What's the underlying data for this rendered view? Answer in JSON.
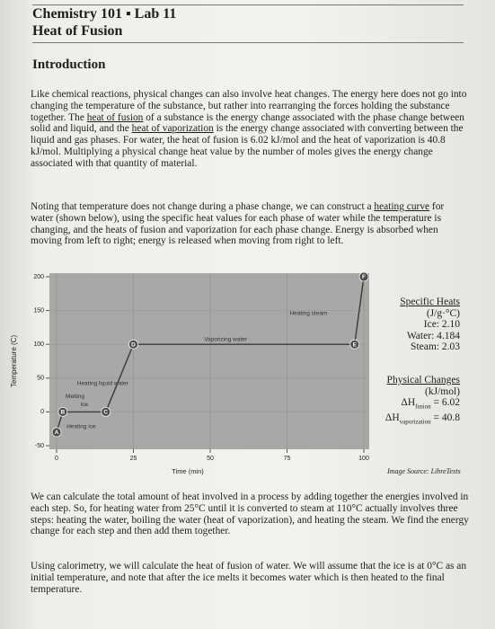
{
  "header": {
    "title": "Chemistry 101 ▪ Lab 11",
    "subtitle": "Heat of Fusion"
  },
  "section": {
    "heading": "Introduction"
  },
  "paragraphs": [
    {
      "runs": [
        {
          "text": "Like chemical reactions, physical changes can also involve heat changes. The energy here does not go into changing the temperature of the substance, but rather into rearranging the forces holding the substance together. The ",
          "underline": false
        },
        {
          "text": "heat of fusion",
          "underline": true
        },
        {
          "text": " of a substance is the energy change associated with the phase change between solid and liquid, and the ",
          "underline": false
        },
        {
          "text": "heat of vaporization",
          "underline": true
        },
        {
          "text": " is the energy change associated with converting between the liquid and gas phases. For water, the heat of fusion is 6.02 kJ/mol and the heat of vaporization is 40.8 kJ/mol. Multiplying a physical change heat value by the number of moles gives the energy change associated with that quantity of material.",
          "underline": false
        }
      ]
    },
    {
      "runs": [
        {
          "text": "Noting that temperature does not change during a phase change, we can construct a ",
          "underline": false
        },
        {
          "text": "heating curve",
          "underline": true
        },
        {
          "text": " for water (shown below), using the specific heat values for each phase of water while the temperature is changing, and the heats of fusion and vaporization for each phase change. Energy is absorbed when moving from left to right; energy is released when moving from right to left.",
          "underline": false
        }
      ]
    },
    {
      "runs": [
        {
          "text": "We can calculate the total amount of heat involved in a process by adding together the energies involved in each step. So, for heating water from 25°C until it is converted to steam at 110°C actually involves three steps: heating the water, boiling the water (heat of vaporization), and heating the steam. We find the energy change for each step and then add them together.",
          "underline": false
        }
      ]
    },
    {
      "runs": [
        {
          "text": "Using calorimetry, we will calculate the heat of fusion of water. We will assume that the ice is at 0°C as an initial temperature, and note that after the ice melts it becomes water which is then heated to the final temperature.",
          "underline": false
        }
      ]
    }
  ],
  "chart_data": {
    "type": "line",
    "x_label": "Time (min)",
    "y_label": "Temperature (C)",
    "x": [
      0,
      2,
      16,
      25,
      97,
      100
    ],
    "values": [
      -30,
      0,
      0,
      100,
      100,
      200
    ],
    "point_labels": [
      "A",
      "B",
      "C",
      "D",
      "E",
      "F"
    ],
    "annotations": [
      "Heating ice",
      "Melting",
      "Ice",
      "Heating liquid water",
      "Vaporizing water",
      "Heating steam"
    ],
    "color": "#3a3a3a",
    "xlim": [
      0,
      100
    ],
    "ylim": [
      -50,
      200
    ],
    "xticks": [
      0,
      25,
      50,
      75,
      100
    ],
    "yticks": [
      -50,
      0,
      50,
      100,
      150,
      200
    ],
    "grid": true
  },
  "sidebar": {
    "specific_heats": {
      "heading": "Specific Heats",
      "unit": "(J/g·°C)",
      "items": [
        "Ice: 2.10",
        "Water: 4.184",
        "Steam: 2.03"
      ]
    },
    "physical_changes": {
      "heading": "Physical Changes",
      "unit": "(kJ/mol)",
      "items": [
        {
          "symbol": "ΔH",
          "subscript": "fusion",
          "value": "= 6.02"
        },
        {
          "symbol": "ΔH",
          "subscript": "vaporization",
          "value": "= 40.8"
        }
      ]
    }
  },
  "image_source": "Image Source: LibreTexts"
}
